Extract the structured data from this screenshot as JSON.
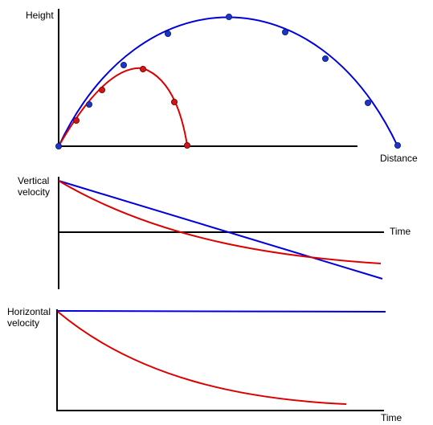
{
  "colors": {
    "axis": "#000000",
    "no_drag": "#0000dd",
    "with_drag": "#dd0000",
    "point_no_drag": "#1a35cc",
    "point_with_drag": "#d11515"
  },
  "panels": {
    "trajectory": {
      "y_label": "Height",
      "x_label": "Distance"
    },
    "vertical_velocity": {
      "y_label_line1": "Vertical",
      "y_label_line2": "velocity",
      "x_label": "Time"
    },
    "horizontal_velocity": {
      "y_label_line1": "Horizontal",
      "y_label_line2": "velocity",
      "x_label": "Time"
    }
  }
}
